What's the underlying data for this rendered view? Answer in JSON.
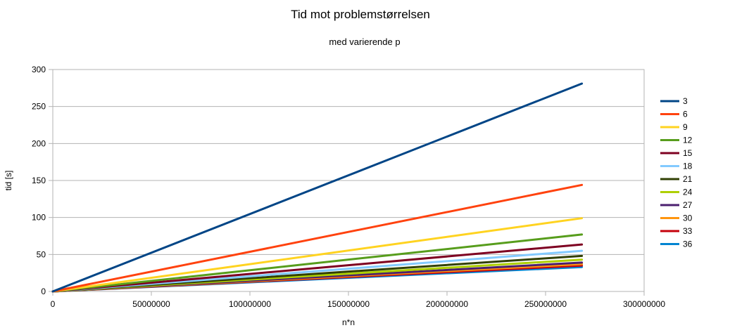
{
  "chart_data": {
    "type": "line",
    "title": "Tid mot problemstørrelsen",
    "subtitle": "med varierende p",
    "xlabel": "n*n",
    "ylabel": "tid [s]",
    "xlim": [
      0,
      300000000
    ],
    "ylim": [
      0,
      300
    ],
    "x_ticks": [
      "0",
      "50000000",
      "100000000",
      "150000000",
      "200000000",
      "250000000",
      "300000000"
    ],
    "y_ticks": [
      "0",
      "50",
      "100",
      "150",
      "200",
      "250",
      "300"
    ],
    "grid": true,
    "legend_position": "right",
    "x": [
      0,
      268435456
    ],
    "series": [
      {
        "name": "3",
        "color": "#004586",
        "values": [
          0,
          281
        ]
      },
      {
        "name": "6",
        "color": "#ff420e",
        "values": [
          0,
          144
        ]
      },
      {
        "name": "9",
        "color": "#ffd320",
        "values": [
          0,
          99
        ]
      },
      {
        "name": "12",
        "color": "#579d1c",
        "values": [
          0,
          77
        ]
      },
      {
        "name": "15",
        "color": "#7e0021",
        "values": [
          0,
          63.5
        ]
      },
      {
        "name": "18",
        "color": "#83caff",
        "values": [
          0,
          55
        ]
      },
      {
        "name": "21",
        "color": "#314004",
        "values": [
          0,
          48
        ]
      },
      {
        "name": "24",
        "color": "#aecf00",
        "values": [
          0,
          43
        ]
      },
      {
        "name": "27",
        "color": "#4b1f6f",
        "values": [
          0,
          39
        ]
      },
      {
        "name": "30",
        "color": "#ff950e",
        "values": [
          0,
          37
        ]
      },
      {
        "name": "33",
        "color": "#c5000b",
        "values": [
          0,
          35
        ]
      },
      {
        "name": "36",
        "color": "#0084d1",
        "values": [
          0,
          33
        ]
      }
    ]
  }
}
